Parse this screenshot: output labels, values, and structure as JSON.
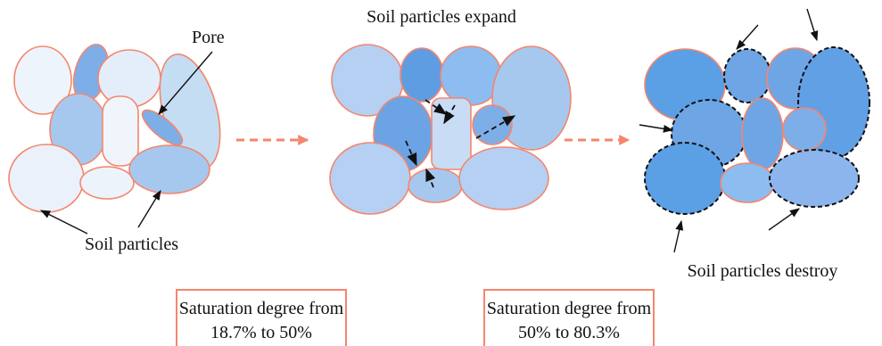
{
  "labels": {
    "pore": "Pore",
    "soil_particles": "Soil particles",
    "expand": "Soil particles expand",
    "destroy": "Soil particles destroy"
  },
  "stages": [
    {
      "lines": [
        "Saturation degree from",
        "18.7% to 50%"
      ]
    },
    {
      "lines": [
        "Saturation degree from",
        "50% to 80.3%"
      ]
    }
  ]
}
